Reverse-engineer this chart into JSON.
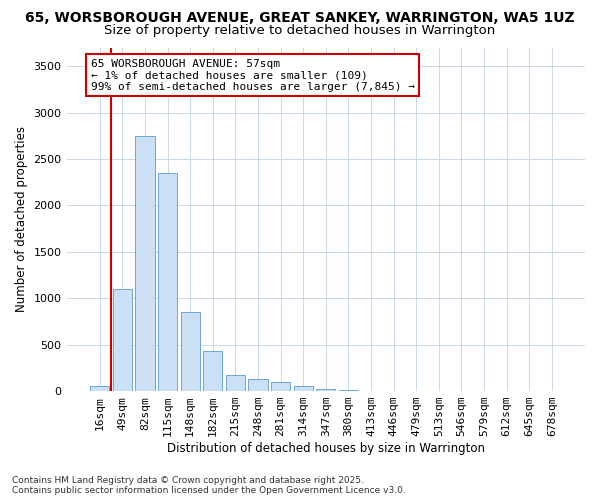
{
  "title1": "65, WORSBOROUGH AVENUE, GREAT SANKEY, WARRINGTON, WA5 1UZ",
  "title2": "Size of property relative to detached houses in Warrington",
  "xlabel": "Distribution of detached houses by size in Warrington",
  "ylabel": "Number of detached properties",
  "categories": [
    "16sqm",
    "49sqm",
    "82sqm",
    "115sqm",
    "148sqm",
    "182sqm",
    "215sqm",
    "248sqm",
    "281sqm",
    "314sqm",
    "347sqm",
    "380sqm",
    "413sqm",
    "446sqm",
    "479sqm",
    "513sqm",
    "546sqm",
    "579sqm",
    "612sqm",
    "645sqm",
    "678sqm"
  ],
  "values": [
    50,
    1100,
    2750,
    2350,
    850,
    430,
    170,
    130,
    100,
    60,
    20,
    10,
    5,
    2,
    1,
    1,
    0,
    0,
    0,
    0,
    0
  ],
  "bar_color": "#cce0f5",
  "bar_edge_color": "#5b9bd5",
  "vline_x": 0.5,
  "vline_color": "#cc0000",
  "annotation_text": "65 WORSBOROUGH AVENUE: 57sqm\n← 1% of detached houses are smaller (109)\n99% of semi-detached houses are larger (7,845) →",
  "annotation_box_color": "#ffffff",
  "annotation_box_edge": "#cc0000",
  "ylim": [
    0,
    3700
  ],
  "yticks": [
    0,
    500,
    1000,
    1500,
    2000,
    2500,
    3000,
    3500
  ],
  "footnote1": "Contains HM Land Registry data © Crown copyright and database right 2025.",
  "footnote2": "Contains public sector information licensed under the Open Government Licence v3.0.",
  "bg_color": "#ffffff",
  "grid_color": "#c8d8e8",
  "title1_fontsize": 10,
  "title2_fontsize": 9.5,
  "xlabel_fontsize": 8.5,
  "ylabel_fontsize": 8.5,
  "tick_fontsize": 8,
  "annot_fontsize": 8
}
